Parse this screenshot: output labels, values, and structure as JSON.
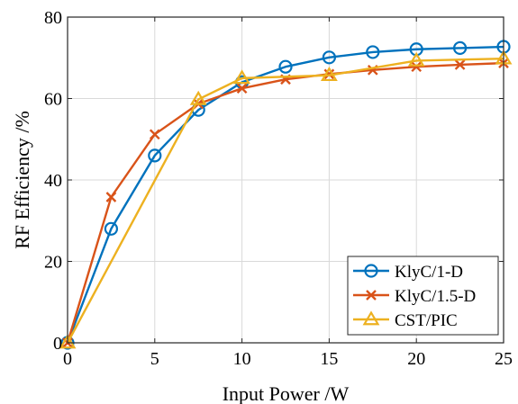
{
  "chart_data": {
    "type": "line",
    "xlabel": "Input Power /W",
    "ylabel": "RF Efficiency /%",
    "xlim": [
      0,
      25
    ],
    "ylim": [
      0,
      80
    ],
    "xticks": [
      0,
      5,
      10,
      15,
      20,
      25
    ],
    "yticks": [
      0,
      20,
      40,
      60,
      80
    ],
    "grid": true,
    "legend_position": "bottom-right",
    "series": [
      {
        "name": "KlyC/1-D",
        "color": "#0072bd",
        "marker": "circle",
        "x": [
          0,
          2.5,
          5,
          7.5,
          10,
          12.5,
          15,
          17.5,
          20,
          22.5,
          25
        ],
        "y": [
          0,
          28,
          46,
          57.2,
          64,
          67.8,
          70.1,
          71.4,
          72.1,
          72.4,
          72.7
        ]
      },
      {
        "name": "KlyC/1.5-D",
        "color": "#d95319",
        "marker": "x",
        "x": [
          0,
          2.5,
          5,
          7.5,
          10,
          12.5,
          15,
          17.5,
          20,
          22.5,
          25
        ],
        "y": [
          0,
          35.8,
          51.2,
          58.7,
          62.5,
          64.7,
          66,
          67,
          67.8,
          68.3,
          68.7
        ]
      },
      {
        "name": "CST/PIC",
        "color": "#edb120",
        "marker": "triangle",
        "x": [
          0,
          7.5,
          10,
          15,
          20,
          25
        ],
        "y": [
          0,
          59.8,
          65,
          65.7,
          69.3,
          69.8
        ]
      }
    ]
  }
}
